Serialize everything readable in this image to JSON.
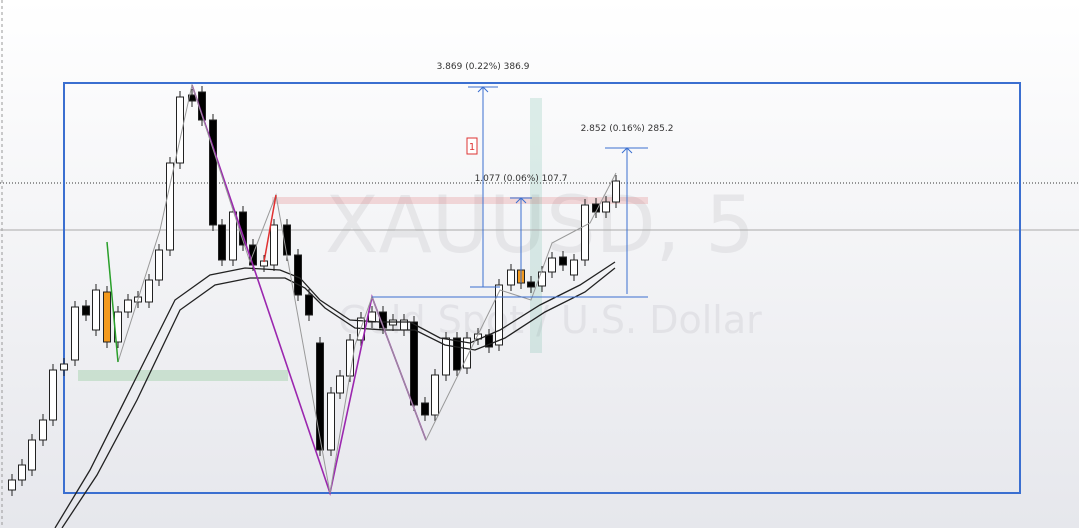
{
  "watermark": {
    "symbol": "XAUUSD, 5",
    "description": "Gold Spot / U.S. Dollar"
  },
  "measurements": [
    {
      "label": "3.869 (0.22%) 386.9"
    },
    {
      "label": "2.852 (0.16%) 285.2"
    },
    {
      "label": "1.077 (0.06%) 107.7"
    }
  ],
  "marker": {
    "label": "1"
  }
}
